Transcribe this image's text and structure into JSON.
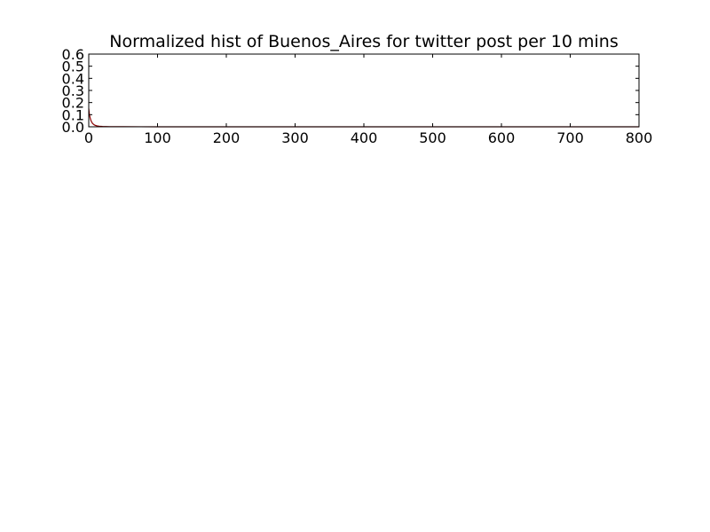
{
  "chart_data": {
    "type": "line",
    "title": "Normalized hist of Buenos_Aires for twitter post per 10 mins",
    "xlabel": "",
    "ylabel": "",
    "xlim": [
      0,
      800
    ],
    "ylim": [
      0,
      0.6
    ],
    "xticks": [
      0,
      100,
      200,
      300,
      400,
      500,
      600,
      700,
      800
    ],
    "xtick_labels": [
      "0",
      "100",
      "200",
      "300",
      "400",
      "500",
      "600",
      "700",
      "800"
    ],
    "yticks": [
      0.0,
      0.1,
      0.2,
      0.3,
      0.4,
      0.5,
      0.6
    ],
    "ytick_labels": [
      "0.0",
      "0.1",
      "0.2",
      "0.3",
      "0.4",
      "0.5",
      "0.6"
    ],
    "grid": false,
    "legend": "none",
    "series": [
      {
        "color": "#8b0000",
        "x": [
          0,
          1,
          2,
          3,
          4,
          5,
          6,
          8,
          10,
          12,
          15,
          20,
          25,
          30,
          40,
          50,
          75,
          100,
          150,
          200,
          300,
          400,
          500,
          600,
          700,
          800
        ],
        "y": [
          0.15,
          0.1,
          0.075,
          0.055,
          0.042,
          0.032,
          0.025,
          0.016,
          0.011,
          0.008,
          0.005,
          0.003,
          0.002,
          0.0015,
          0.001,
          0.0007,
          0.0004,
          0.0002,
          0.0001,
          0.0001,
          0,
          0,
          0,
          0,
          0,
          0
        ]
      }
    ]
  }
}
